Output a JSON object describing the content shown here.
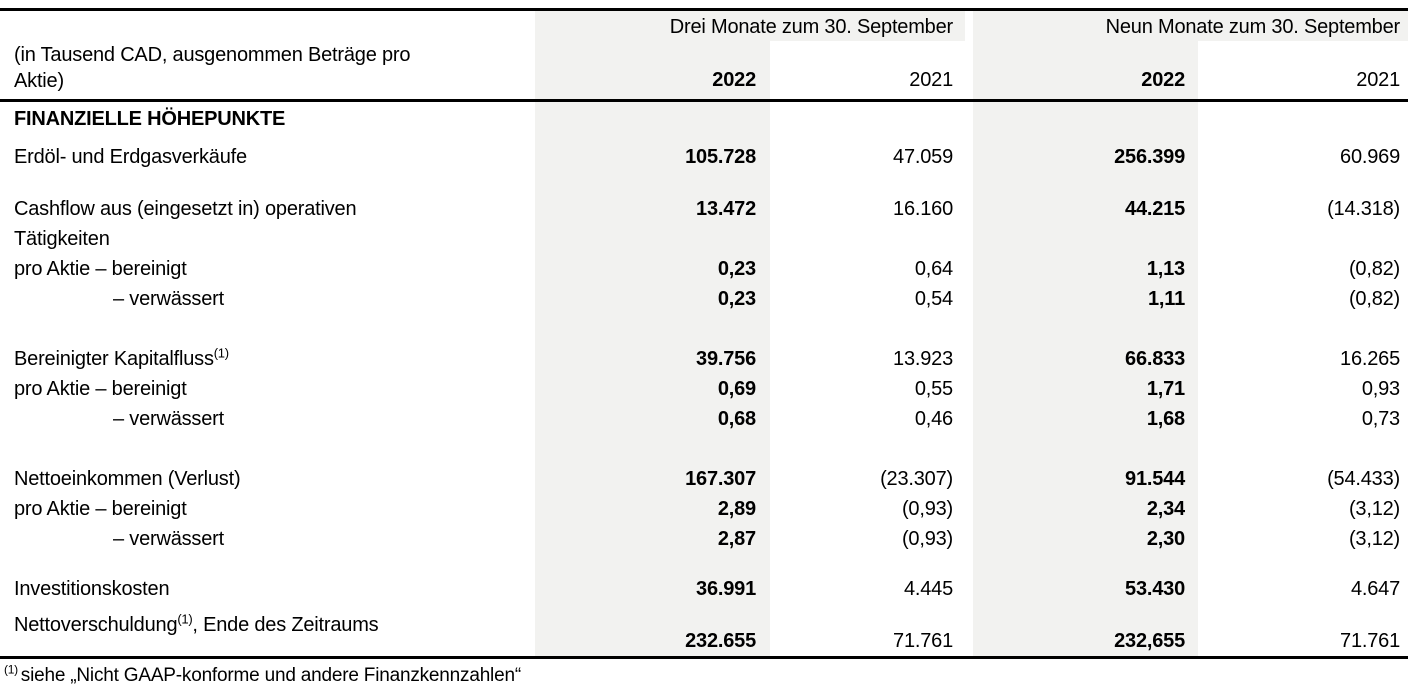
{
  "colors": {
    "shade": "#f2f2f0",
    "rule": "#000000",
    "text": "#000000"
  },
  "table": {
    "unit_note": "(in Tausend CAD, ausgenommen Beträge pro Aktie)",
    "col_groups": [
      {
        "label": "Drei Monate zum 30. September",
        "years": [
          "2022",
          "2021"
        ]
      },
      {
        "label": "Neun Monate zum 30. September",
        "years": [
          "2022",
          "2021"
        ]
      }
    ],
    "section_title": "FINANZIELLE HÖHEPUNKTE",
    "rows": [
      {
        "gap": "xs",
        "label": "Erdöl- und Erdgasverkäufe",
        "values": [
          "105.728",
          "47.059",
          "256.399",
          "60.969"
        ]
      },
      {
        "gap": "m",
        "label": "Cashflow aus (eingesetzt in) operativen Tätigkeiten",
        "values": [
          "13.472",
          "16.160",
          "44.215",
          "(14.318)"
        ]
      },
      {
        "label": "pro Aktie – bereinigt",
        "values": [
          "0,23",
          "0,64",
          "1,13",
          "(0,82)"
        ]
      },
      {
        "indent": true,
        "label": "– verwässert",
        "values": [
          "0,23",
          "0,54",
          "1,11",
          "(0,82)"
        ]
      },
      {
        "gap": "l",
        "label": "Bereinigter Kapitalfluss",
        "label_sup": "(1)",
        "values": [
          "39.756",
          "13.923",
          "66.833",
          "16.265"
        ]
      },
      {
        "label": "pro Aktie – bereinigt",
        "values": [
          "0,69",
          "0,55",
          "1,71",
          "0,93"
        ]
      },
      {
        "indent": true,
        "label": "– verwässert",
        "values": [
          "0,68",
          "0,46",
          "1,68",
          "0,73"
        ]
      },
      {
        "gap": "l",
        "label": "Nettoeinkommen (Verlust)",
        "values": [
          "167.307",
          "(23.307)",
          "91.544",
          "(54.433)"
        ]
      },
      {
        "label": "pro Aktie – bereinigt",
        "values": [
          "2,89",
          "(0,93)",
          "2,34",
          "(3,12)"
        ]
      },
      {
        "indent": true,
        "label": "– verwässert",
        "values": [
          "2,87",
          "(0,93)",
          "2,30",
          "(3,12)"
        ]
      },
      {
        "gap": "s",
        "label": "Investitionskosten",
        "values": [
          "36.991",
          "4.445",
          "53.430",
          "4.647"
        ]
      },
      {
        "gap": "xs",
        "valign": "bottom",
        "label": "Nettoverschuldung",
        "label_sup": "(1)",
        "label_post": ", Ende des Zeitraums",
        "values": [
          "232.655",
          "71.761",
          "232,655",
          "71.761"
        ]
      }
    ],
    "footnote": {
      "sup": "(1)",
      "text": "siehe „Nicht GAAP-konforme und andere Finanzkennzahlen“"
    }
  }
}
